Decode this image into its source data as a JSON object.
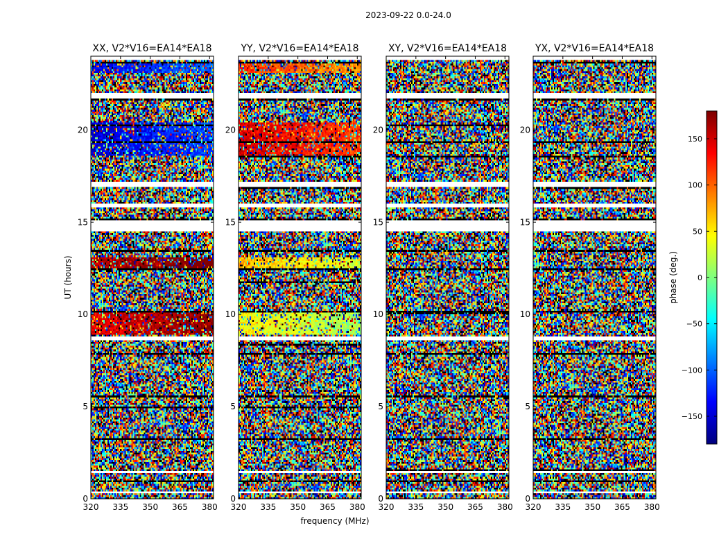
{
  "figure": {
    "suptitle": "2023-09-22 0.0-24.0",
    "xlabel": "frequency (MHz)",
    "ylabel": "UT (hours)"
  },
  "chart_data": [
    {
      "type": "heatmap",
      "title": "XX, V2*V16=EA14*EA18",
      "xlim": [
        320,
        382
      ],
      "ylim": [
        0,
        24
      ],
      "xticks": [
        "320",
        "335",
        "350",
        "365",
        "380"
      ],
      "yticks": [
        "0",
        "5",
        "10",
        "15",
        "20"
      ],
      "coherent_bands": [
        {
          "utStart": 18.6,
          "utEnd": 20.4,
          "phase": -150
        },
        {
          "utStart": 12.4,
          "utEnd": 13.1,
          "phase": 155
        },
        {
          "utStart": 8.9,
          "utEnd": 10.2,
          "phase": 140
        },
        {
          "utStart": 23.1,
          "utEnd": 23.6,
          "phase": -140
        }
      ]
    },
    {
      "type": "heatmap",
      "title": "YY, V2*V16=EA14*EA18",
      "xlim": [
        320,
        382
      ],
      "ylim": [
        0,
        24
      ],
      "xticks": [
        "320",
        "335",
        "350",
        "365",
        "380"
      ],
      "yticks": [
        "0",
        "5",
        "10",
        "15",
        "20"
      ],
      "coherent_bands": [
        {
          "utStart": 18.6,
          "utEnd": 20.4,
          "phase": 150
        },
        {
          "utStart": 12.4,
          "utEnd": 13.1,
          "phase": 70
        },
        {
          "utStart": 8.9,
          "utEnd": 10.2,
          "phase": 50
        },
        {
          "utStart": 23.1,
          "utEnd": 23.6,
          "phase": 120
        }
      ]
    },
    {
      "type": "heatmap",
      "title": "XY, V2*V16=EA14*EA18",
      "xlim": [
        320,
        382
      ],
      "ylim": [
        0,
        24
      ],
      "xticks": [
        "320",
        "335",
        "350",
        "365",
        "380"
      ],
      "yticks": [
        "0",
        "5",
        "10",
        "15",
        "20"
      ],
      "coherent_bands": []
    },
    {
      "type": "heatmap",
      "title": "YX, V2*V16=EA14*EA18",
      "xlim": [
        320,
        382
      ],
      "ylim": [
        0,
        24
      ],
      "xticks": [
        "320",
        "335",
        "350",
        "365",
        "380"
      ],
      "yticks": [
        "0",
        "5",
        "10",
        "15",
        "20"
      ],
      "coherent_bands": []
    }
  ],
  "colorbar": {
    "label": "phase (deg.)",
    "range": [
      -180,
      180
    ],
    "ticks": [
      "150",
      "100",
      "50",
      "0",
      "−50",
      "−100",
      "−150"
    ],
    "tick_values": [
      150,
      100,
      50,
      0,
      -50,
      -100,
      -150
    ],
    "colormap": "jet"
  },
  "flagged_ut_ranges": [
    [
      14.5,
      15.05
    ],
    [
      16.9,
      17.2
    ],
    [
      21.7,
      22.0
    ],
    [
      23.8,
      24.0
    ],
    [
      1.4,
      1.5
    ],
    [
      8.6,
      8.75
    ],
    [
      15.8,
      16.0
    ],
    [
      0.3,
      0.4
    ]
  ]
}
